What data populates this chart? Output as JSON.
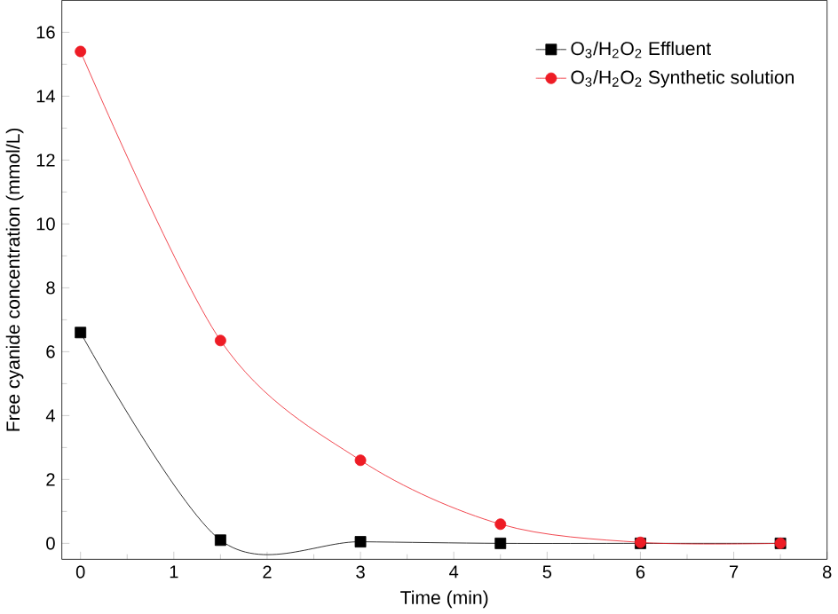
{
  "chart_data": {
    "type": "line",
    "xlabel": "Time (min)",
    "ylabel": "Free cyanide concentration (mmol/L)",
    "x": [
      0,
      1.5,
      3,
      4.5,
      6,
      7.5
    ],
    "series": [
      {
        "name": "O$_{3}$/H$_{2}$O$_{2}$ Effluent",
        "color": "#000000",
        "marker": "square",
        "values": [
          6.6,
          0.1,
          0.05,
          0.0,
          0.0,
          0.0
        ]
      },
      {
        "name": "O$_{3}$/H$_{2}$O$_{2}$ Synthetic solution",
        "color": "#ee1c25",
        "marker": "circle",
        "values": [
          15.4,
          6.35,
          2.6,
          0.6,
          0.03,
          0.0
        ]
      }
    ],
    "xlim": [
      -0.2,
      8
    ],
    "ylim": [
      -0.5,
      17
    ],
    "xticks": [
      0,
      1,
      2,
      3,
      4,
      5,
      6,
      7,
      8
    ],
    "yticks": [
      0,
      2,
      4,
      6,
      8,
      10,
      12,
      14,
      16
    ],
    "grid": false,
    "legend": "top right",
    "line_style": "solid"
  }
}
